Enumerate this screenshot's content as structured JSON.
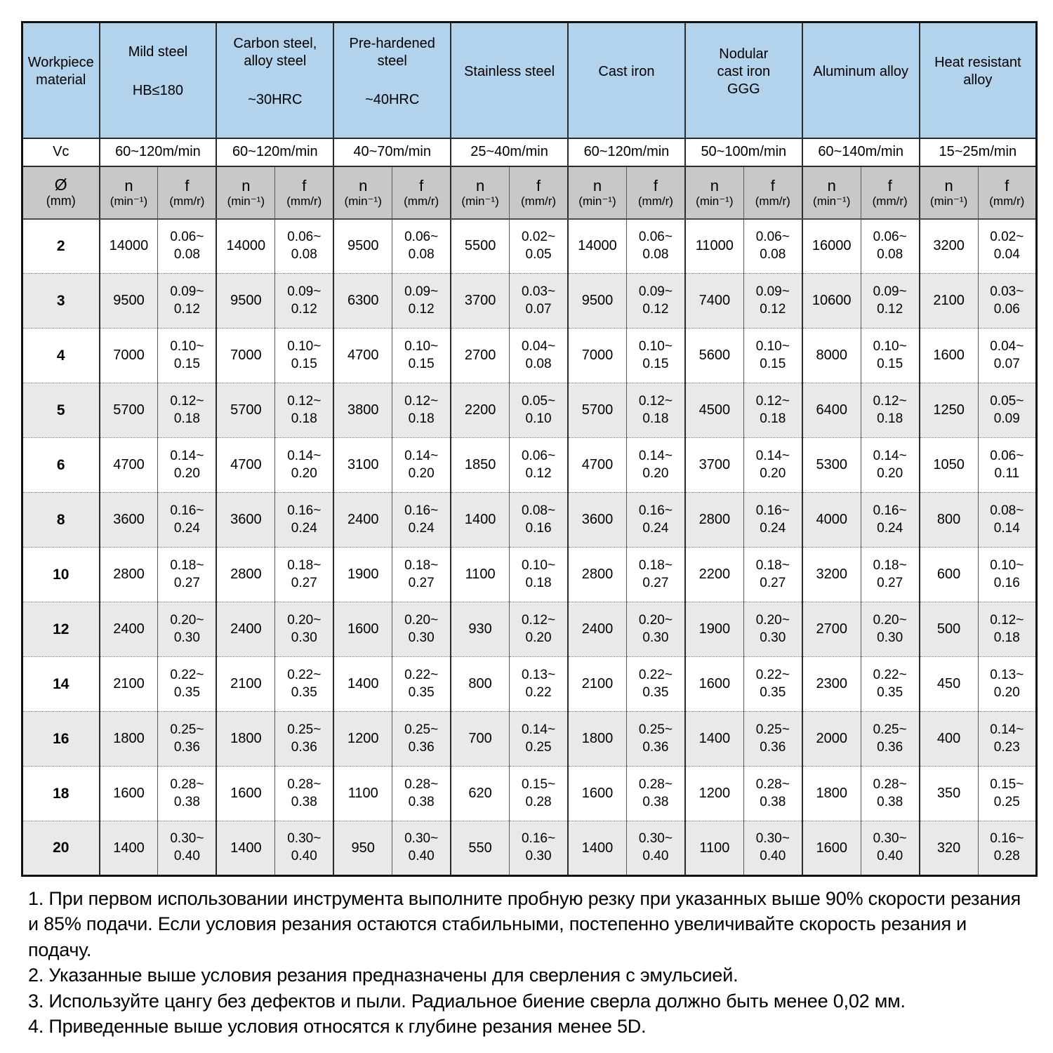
{
  "table": {
    "corner_label": "Workpiece material",
    "vc_label": "Vc",
    "diameter_symbol": "Ø",
    "diameter_unit": "(mm)",
    "n_label": "n",
    "n_unit": "(min⁻¹)",
    "f_label": "f",
    "f_unit": "(mm/r)",
    "materials": [
      {
        "lines": [
          "Mild steel"
        ],
        "sub": "HB≤180",
        "vc": "60~120m/min"
      },
      {
        "lines": [
          "Carbon steel,",
          "alloy steel"
        ],
        "sub": "~30HRC",
        "vc": "60~120m/min"
      },
      {
        "lines": [
          "Pre-hardened",
          "steel"
        ],
        "sub": "~40HRC",
        "vc": "40~70m/min"
      },
      {
        "lines": [
          "Stainless steel"
        ],
        "sub": "",
        "vc": "25~40m/min"
      },
      {
        "lines": [
          "Cast iron"
        ],
        "sub": "",
        "vc": "60~120m/min"
      },
      {
        "lines": [
          "Nodular",
          "cast iron",
          "GGG"
        ],
        "sub": "",
        "vc": "50~100m/min"
      },
      {
        "lines": [
          "Aluminum alloy"
        ],
        "sub": "",
        "vc": "60~140m/min"
      },
      {
        "lines": [
          "Heat resistant",
          "alloy"
        ],
        "sub": "",
        "vc": "15~25m/min"
      }
    ],
    "rows": [
      {
        "d": "2",
        "pairs": [
          [
            "14000",
            "0.06~0.08"
          ],
          [
            "14000",
            "0.06~0.08"
          ],
          [
            "9500",
            "0.06~0.08"
          ],
          [
            "5500",
            "0.02~0.05"
          ],
          [
            "14000",
            "0.06~0.08"
          ],
          [
            "11000",
            "0.06~0.08"
          ],
          [
            "16000",
            "0.06~0.08"
          ],
          [
            "3200",
            "0.02~0.04"
          ]
        ]
      },
      {
        "d": "3",
        "pairs": [
          [
            "9500",
            "0.09~0.12"
          ],
          [
            "9500",
            "0.09~0.12"
          ],
          [
            "6300",
            "0.09~0.12"
          ],
          [
            "3700",
            "0.03~0.07"
          ],
          [
            "9500",
            "0.09~0.12"
          ],
          [
            "7400",
            "0.09~0.12"
          ],
          [
            "10600",
            "0.09~0.12"
          ],
          [
            "2100",
            "0.03~0.06"
          ]
        ]
      },
      {
        "d": "4",
        "pairs": [
          [
            "7000",
            "0.10~0.15"
          ],
          [
            "7000",
            "0.10~0.15"
          ],
          [
            "4700",
            "0.10~0.15"
          ],
          [
            "2700",
            "0.04~0.08"
          ],
          [
            "7000",
            "0.10~0.15"
          ],
          [
            "5600",
            "0.10~0.15"
          ],
          [
            "8000",
            "0.10~0.15"
          ],
          [
            "1600",
            "0.04~0.07"
          ]
        ]
      },
      {
        "d": "5",
        "pairs": [
          [
            "5700",
            "0.12~0.18"
          ],
          [
            "5700",
            "0.12~0.18"
          ],
          [
            "3800",
            "0.12~0.18"
          ],
          [
            "2200",
            "0.05~0.10"
          ],
          [
            "5700",
            "0.12~0.18"
          ],
          [
            "4500",
            "0.12~0.18"
          ],
          [
            "6400",
            "0.12~0.18"
          ],
          [
            "1250",
            "0.05~0.09"
          ]
        ]
      },
      {
        "d": "6",
        "pairs": [
          [
            "4700",
            "0.14~0.20"
          ],
          [
            "4700",
            "0.14~0.20"
          ],
          [
            "3100",
            "0.14~0.20"
          ],
          [
            "1850",
            "0.06~0.12"
          ],
          [
            "4700",
            "0.14~0.20"
          ],
          [
            "3700",
            "0.14~0.20"
          ],
          [
            "5300",
            "0.14~0.20"
          ],
          [
            "1050",
            "0.06~0.11"
          ]
        ]
      },
      {
        "d": "8",
        "pairs": [
          [
            "3600",
            "0.16~0.24"
          ],
          [
            "3600",
            "0.16~0.24"
          ],
          [
            "2400",
            "0.16~0.24"
          ],
          [
            "1400",
            "0.08~0.16"
          ],
          [
            "3600",
            "0.16~0.24"
          ],
          [
            "2800",
            "0.16~0.24"
          ],
          [
            "4000",
            "0.16~0.24"
          ],
          [
            "800",
            "0.08~0.14"
          ]
        ]
      },
      {
        "d": "10",
        "pairs": [
          [
            "2800",
            "0.18~0.27"
          ],
          [
            "2800",
            "0.18~0.27"
          ],
          [
            "1900",
            "0.18~0.27"
          ],
          [
            "1100",
            "0.10~0.18"
          ],
          [
            "2800",
            "0.18~0.27"
          ],
          [
            "2200",
            "0.18~0.27"
          ],
          [
            "3200",
            "0.18~0.27"
          ],
          [
            "600",
            "0.10~0.16"
          ]
        ]
      },
      {
        "d": "12",
        "pairs": [
          [
            "2400",
            "0.20~0.30"
          ],
          [
            "2400",
            "0.20~0.30"
          ],
          [
            "1600",
            "0.20~0.30"
          ],
          [
            "930",
            "0.12~0.20"
          ],
          [
            "2400",
            "0.20~0.30"
          ],
          [
            "1900",
            "0.20~0.30"
          ],
          [
            "2700",
            "0.20~0.30"
          ],
          [
            "500",
            "0.12~0.18"
          ]
        ]
      },
      {
        "d": "14",
        "pairs": [
          [
            "2100",
            "0.22~0.35"
          ],
          [
            "2100",
            "0.22~0.35"
          ],
          [
            "1400",
            "0.22~0.35"
          ],
          [
            "800",
            "0.13~0.22"
          ],
          [
            "2100",
            "0.22~0.35"
          ],
          [
            "1600",
            "0.22~0.35"
          ],
          [
            "2300",
            "0.22~0.35"
          ],
          [
            "450",
            "0.13~0.20"
          ]
        ]
      },
      {
        "d": "16",
        "pairs": [
          [
            "1800",
            "0.25~0.36"
          ],
          [
            "1800",
            "0.25~0.36"
          ],
          [
            "1200",
            "0.25~0.36"
          ],
          [
            "700",
            "0.14~0.25"
          ],
          [
            "1800",
            "0.25~0.36"
          ],
          [
            "1400",
            "0.25~0.36"
          ],
          [
            "2000",
            "0.25~0.36"
          ],
          [
            "400",
            "0.14~0.23"
          ]
        ]
      },
      {
        "d": "18",
        "pairs": [
          [
            "1600",
            "0.28~0.38"
          ],
          [
            "1600",
            "0.28~0.38"
          ],
          [
            "1100",
            "0.28~0.38"
          ],
          [
            "620",
            "0.15~0.28"
          ],
          [
            "1600",
            "0.28~0.38"
          ],
          [
            "1200",
            "0.28~0.38"
          ],
          [
            "1800",
            "0.28~0.38"
          ],
          [
            "350",
            "0.15~0.25"
          ]
        ]
      },
      {
        "d": "20",
        "pairs": [
          [
            "1400",
            "0.30~0.40"
          ],
          [
            "1400",
            "0.30~0.40"
          ],
          [
            "950",
            "0.30~0.40"
          ],
          [
            "550",
            "0.16~0.30"
          ],
          [
            "1400",
            "0.30~0.40"
          ],
          [
            "1100",
            "0.30~0.40"
          ],
          [
            "1600",
            "0.30~0.40"
          ],
          [
            "320",
            "0.16~0.28"
          ]
        ]
      }
    ]
  },
  "notes": [
    "1. При первом использовании инструмента выполните пробную резку при указанных выше 90% скорости резания и 85% подачи. Если условия резания остаются стабильными, постепенно увеличивайте скорость резания и подачу.",
    "2. Указанные выше условия резания предназначены для сверления с эмульсией.",
    "3. Используйте цангу без дефектов и пыли. Радиальное биение сверла должно быть менее 0,02 мм.",
    "4. Приведенные выше условия относятся к глубине резания менее 5D."
  ],
  "colors": {
    "header_blue": "#b3d3ec",
    "unit_gray": "#c8c8c8",
    "row_alt_gray": "#e9e9e9",
    "border_dark": "#111111"
  }
}
